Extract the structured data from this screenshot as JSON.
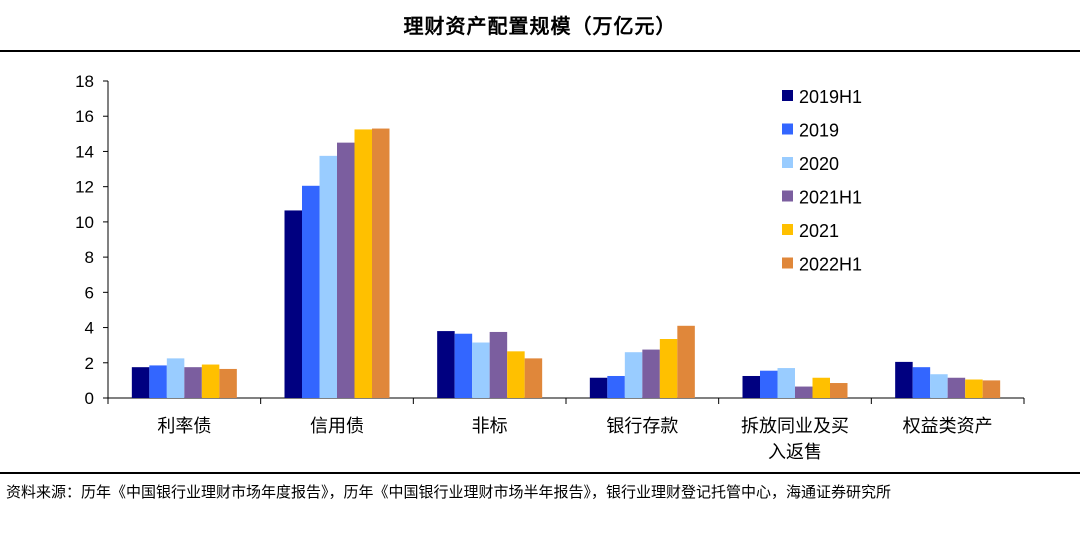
{
  "chart_data": {
    "type": "bar",
    "title": "理财资产配置规模（万亿元）",
    "categories": [
      "利率债",
      "信用债",
      "非标",
      "银行存款",
      "拆放同业及买入返售",
      "权益类资产"
    ],
    "category_lines": [
      [
        "利率债"
      ],
      [
        "信用债"
      ],
      [
        "非标"
      ],
      [
        "银行存款"
      ],
      [
        "拆放同业及买",
        "入返售"
      ],
      [
        "权益类资产"
      ]
    ],
    "ylim": [
      0,
      18
    ],
    "yticks": [
      0,
      2,
      4,
      6,
      8,
      10,
      12,
      14,
      16,
      18
    ],
    "grid": false,
    "legend_position": "top-right",
    "series": [
      {
        "name": "2019H1",
        "color": "#000080",
        "values": [
          1.75,
          10.65,
          3.8,
          1.15,
          1.25,
          2.05
        ]
      },
      {
        "name": "2019",
        "color": "#3366FF",
        "values": [
          1.85,
          12.05,
          3.65,
          1.25,
          1.55,
          1.75
        ]
      },
      {
        "name": "2020",
        "color": "#99CCFF",
        "values": [
          2.25,
          13.75,
          3.15,
          2.6,
          1.7,
          1.35
        ]
      },
      {
        "name": "2021H1",
        "color": "#7B5E9F",
        "values": [
          1.75,
          14.5,
          3.75,
          2.75,
          0.65,
          1.15
        ]
      },
      {
        "name": "2021",
        "color": "#FFC000",
        "values": [
          1.9,
          15.25,
          2.65,
          3.35,
          1.15,
          1.05
        ]
      },
      {
        "name": "2022H1",
        "color": "#E0873A",
        "values": [
          1.65,
          15.3,
          2.25,
          4.1,
          0.85,
          1.0
        ]
      }
    ]
  },
  "source_text": "资料来源：历年《中国银行业理财市场年度报告》，历年《中国银行业理财市场半年报告》，银行业理财登记托管中心，海通证券研究所"
}
